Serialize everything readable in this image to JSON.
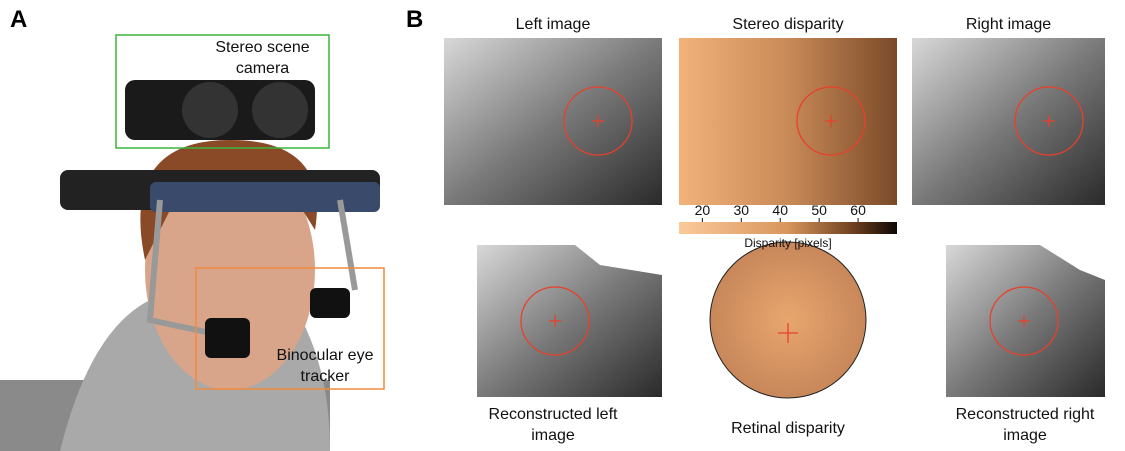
{
  "panels": [
    {
      "label": "A",
      "annotations": [
        "Stereo scene camera",
        "Binocular eye tracker"
      ]
    },
    {
      "label": "B",
      "titles": [
        "Left image",
        "Stereo disparity",
        "Right image"
      ],
      "colorbar": {
        "label": "Disparity [pixels]",
        "lim": [
          14,
          70
        ],
        "ticks": [
          20,
          30,
          40,
          50,
          60
        ]
      },
      "captions": [
        "Reconstructed left image",
        "Retinal disparity",
        "Reconstructed right image"
      ]
    }
  ]
}
